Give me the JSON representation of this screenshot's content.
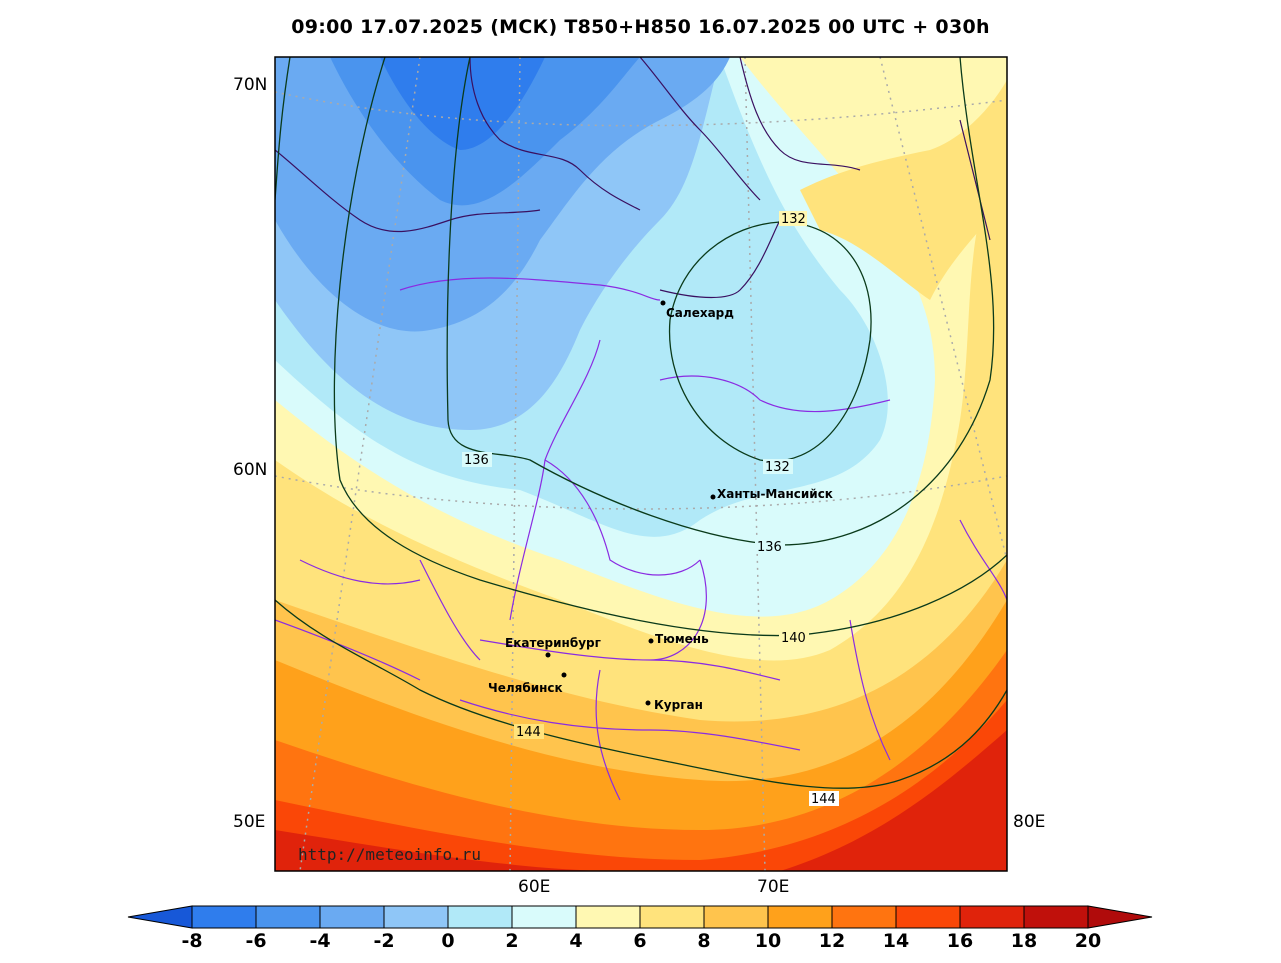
{
  "title": "09:00 17.07.2025 (МСК) T850+H850 16.07.2025 00 UTC + 030h",
  "credit": "http://meteoinfo.ru",
  "lat_labels": [
    "70N",
    "60N",
    "50E"
  ],
  "lon_labels": [
    "60E",
    "70E",
    "80E"
  ],
  "cities": [
    {
      "name": "Салехард"
    },
    {
      "name": "Ханты-Мансийск"
    },
    {
      "name": "Тюмень"
    },
    {
      "name": "Екатеринбург"
    },
    {
      "name": "Челябинск"
    },
    {
      "name": "Курган"
    }
  ],
  "isohypse_labels": [
    "132",
    "132",
    "136",
    "136",
    "140",
    "144",
    "144"
  ],
  "colorbar": {
    "ticks": [
      "-8",
      "-6",
      "-4",
      "-2",
      "0",
      "2",
      "4",
      "6",
      "8",
      "10",
      "12",
      "14",
      "16",
      "18",
      "20"
    ],
    "colors": [
      "#1c6ae6",
      "#2f7ded",
      "#4a94ee",
      "#6aaaf2",
      "#8fc6f7",
      "#b1e9f8",
      "#d9fbfb",
      "#fff8b2",
      "#ffe37c",
      "#ffc44d",
      "#ffa11b",
      "#ff7410",
      "#fa4707",
      "#e0230b",
      "#c0100b"
    ]
  }
}
